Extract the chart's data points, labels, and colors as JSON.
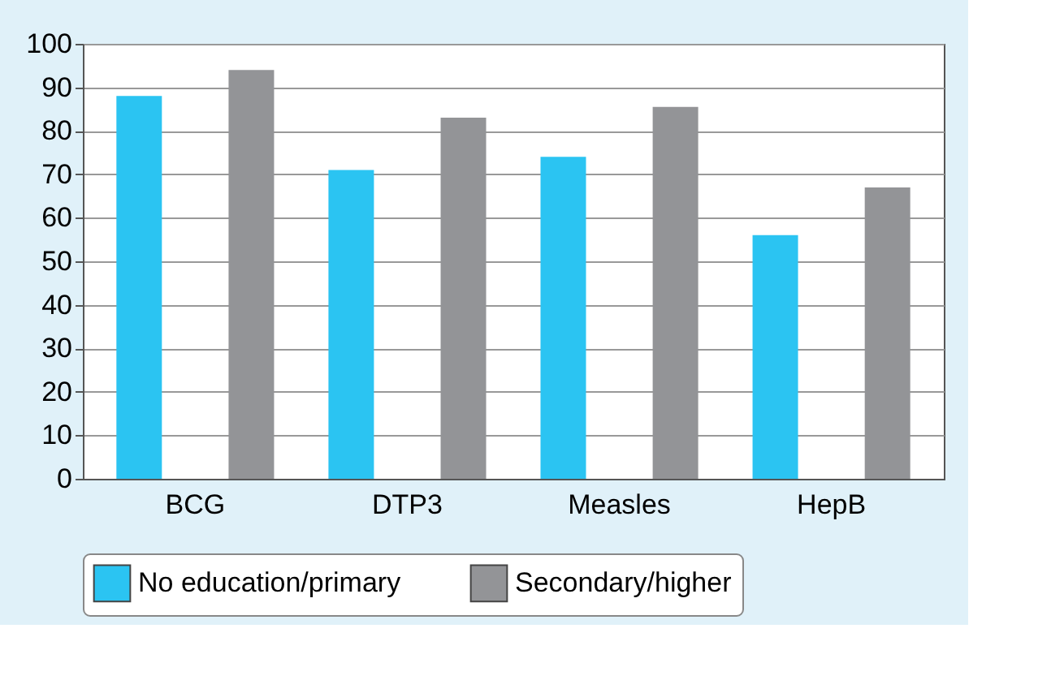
{
  "chart_data": {
    "type": "bar",
    "categories": [
      "BCG",
      "DTP3",
      "Measles",
      "HepB"
    ],
    "series": [
      {
        "name": "No education/primary",
        "color": "#2bc4f2",
        "values": [
          88,
          71,
          74,
          56
        ]
      },
      {
        "name": "Secondary/higher",
        "color": "#939497",
        "values": [
          94,
          83,
          85.5,
          67
        ]
      }
    ],
    "ylim": [
      0,
      100
    ],
    "yticks": [
      0,
      10,
      20,
      30,
      40,
      50,
      60,
      70,
      80,
      90,
      100
    ],
    "grid": "y",
    "legend": "bottom"
  }
}
